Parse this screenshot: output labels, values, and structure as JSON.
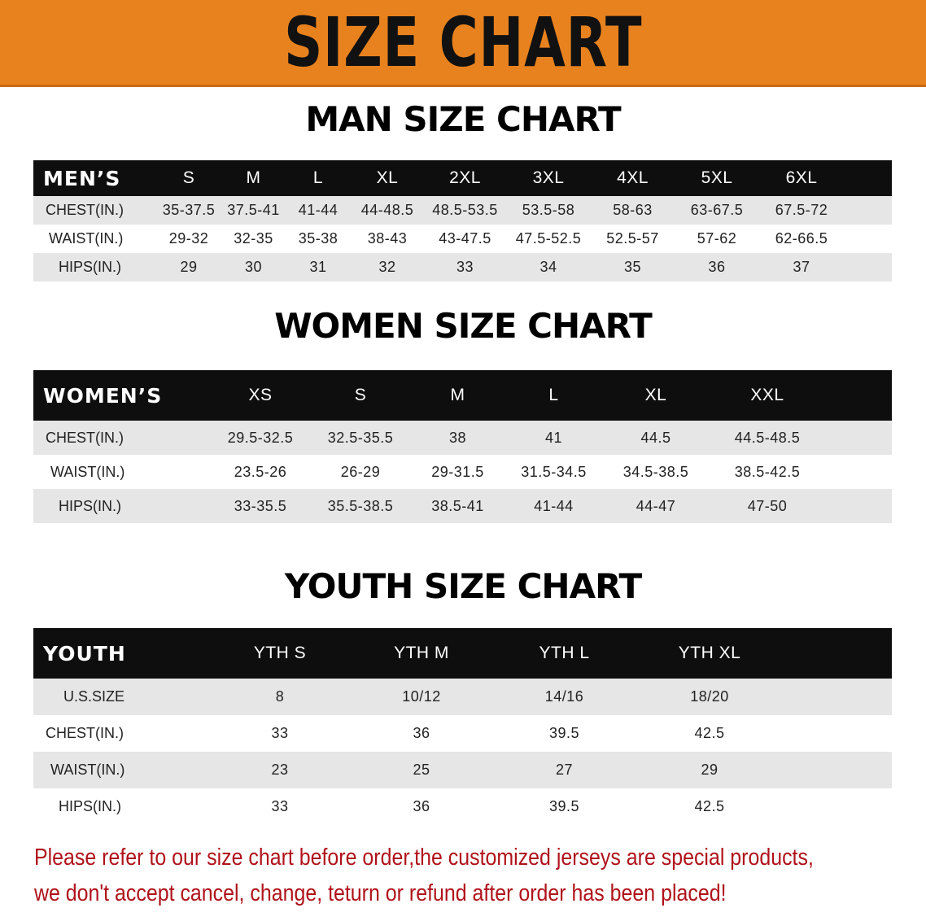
{
  "banner_title": "SIZE CHART",
  "men": {
    "title": "MAN SIZE CHART",
    "header_label": "MEN’S",
    "sizes": [
      "S",
      "M",
      "L",
      "XL",
      "2XL",
      "3XL",
      "4XL",
      "5XL",
      "6XL"
    ],
    "rows": [
      {
        "label": "CHEST(IN.)",
        "values": [
          "35-37.5",
          "37.5-41",
          "41-44",
          "44-48.5",
          "48.5-53.5",
          "53.5-58",
          "58-63",
          "63-67.5",
          "67.5-72"
        ]
      },
      {
        "label": "WAIST(IN.)",
        "values": [
          "29-32",
          "32-35",
          "35-38",
          "38-43",
          "43-47.5",
          "47.5-52.5",
          "52.5-57",
          "57-62",
          "62-66.5"
        ]
      },
      {
        "label": "HIPS(IN.)",
        "values": [
          "29",
          "30",
          "31",
          "32",
          "33",
          "34",
          "35",
          "36",
          "37"
        ]
      }
    ]
  },
  "women": {
    "title": "WOMEN SIZE CHART",
    "header_label": "WOMEN’S",
    "sizes": [
      "XS",
      "S",
      "M",
      "L",
      "XL",
      "XXL"
    ],
    "rows": [
      {
        "label": "CHEST(IN.)",
        "values": [
          "29.5-32.5",
          "32.5-35.5",
          "38",
          "41",
          "44.5",
          "44.5-48.5"
        ]
      },
      {
        "label": "WAIST(IN.)",
        "values": [
          "23.5-26",
          "26-29",
          "29-31.5",
          "31.5-34.5",
          "34.5-38.5",
          "38.5-42.5"
        ]
      },
      {
        "label": "HIPS(IN.)",
        "values": [
          "33-35.5",
          "35.5-38.5",
          "38.5-41",
          "41-44",
          "44-47",
          "47-50"
        ]
      }
    ]
  },
  "youth": {
    "title": "YOUTH SIZE CHART",
    "header_label": "YOUTH",
    "sizes": [
      "YTH S",
      "YTH M",
      "YTH L",
      "YTH XL"
    ],
    "rows": [
      {
        "label": "U.S.SIZE",
        "values": [
          "8",
          "10/12",
          "14/16",
          "18/20"
        ]
      },
      {
        "label": "CHEST(IN.)",
        "values": [
          "33",
          "36",
          "39.5",
          "42.5"
        ]
      },
      {
        "label": "WAIST(IN.)",
        "values": [
          "23",
          "25",
          "27",
          "29"
        ]
      },
      {
        "label": "HIPS(IN.)",
        "values": [
          "33",
          "36",
          "39.5",
          "42.5"
        ]
      }
    ]
  },
  "notice": {
    "line1": "Please refer to our size chart before order,the customized jerseys are special products,",
    "line2": "we don't accept cancel, change, teturn or refund after order has been placed!"
  },
  "colors": {
    "banner": "#e8821e",
    "header": "#0e0e0e",
    "stripe": "#e6e6e6",
    "notice": "#b0121a"
  }
}
